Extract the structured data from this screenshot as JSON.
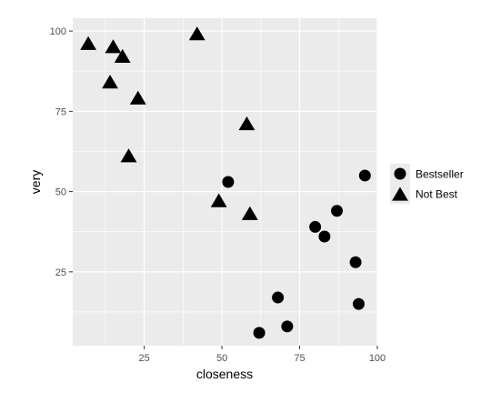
{
  "chart_data": {
    "type": "scatter",
    "xlabel": "closeness",
    "ylabel": "very",
    "xlim": [
      2,
      100
    ],
    "ylim": [
      2,
      104
    ],
    "x_ticks": [
      25,
      50,
      75,
      100
    ],
    "y_ticks": [
      25,
      50,
      75,
      100
    ],
    "x_tick_labels": [
      "25",
      "50",
      "75",
      "100"
    ],
    "y_tick_labels": [
      "25",
      "50",
      "75",
      "100"
    ],
    "grid": true,
    "panel_color": "#ebebeb",
    "grid_color": "#ffffff",
    "point_color": "#000000",
    "legend_position": "right",
    "series": [
      {
        "name": "Bestseller",
        "shape": "circle",
        "points": [
          {
            "x": 52,
            "y": 53
          },
          {
            "x": 62,
            "y": 6
          },
          {
            "x": 68,
            "y": 17
          },
          {
            "x": 71,
            "y": 8
          },
          {
            "x": 80,
            "y": 39
          },
          {
            "x": 83,
            "y": 36
          },
          {
            "x": 87,
            "y": 44
          },
          {
            "x": 93,
            "y": 28
          },
          {
            "x": 94,
            "y": 15
          },
          {
            "x": 96,
            "y": 55
          }
        ]
      },
      {
        "name": "Not Best",
        "shape": "triangle",
        "points": [
          {
            "x": 7,
            "y": 96
          },
          {
            "x": 14,
            "y": 84
          },
          {
            "x": 15,
            "y": 95
          },
          {
            "x": 18,
            "y": 92
          },
          {
            "x": 20,
            "y": 61
          },
          {
            "x": 23,
            "y": 79
          },
          {
            "x": 42,
            "y": 99
          },
          {
            "x": 49,
            "y": 47
          },
          {
            "x": 58,
            "y": 71
          },
          {
            "x": 59,
            "y": 43
          }
        ]
      }
    ]
  }
}
